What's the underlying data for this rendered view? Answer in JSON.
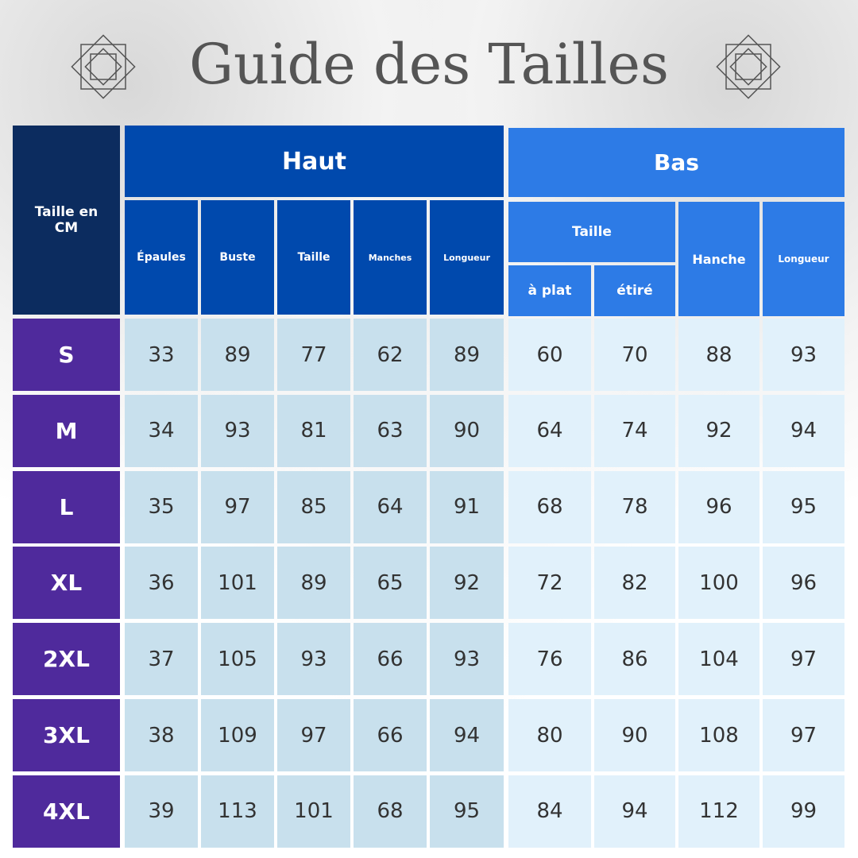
{
  "title": "Guide des Tailles",
  "corner_header": "Taille en CM",
  "haut": {
    "label": "Haut",
    "columns": [
      "Épaules",
      "Buste",
      "Taille",
      "Manches",
      "Longueur"
    ]
  },
  "bas": {
    "label": "Bas",
    "taille": {
      "label": "Taille",
      "columns": [
        "à plat",
        "étiré"
      ]
    },
    "columns": [
      "Hanche",
      "Longueur"
    ]
  },
  "rows": [
    {
      "size": "S",
      "values": [
        33,
        89,
        77,
        62,
        89,
        60,
        70,
        88,
        93
      ]
    },
    {
      "size": "M",
      "values": [
        34,
        93,
        81,
        63,
        90,
        64,
        74,
        92,
        94
      ]
    },
    {
      "size": "L",
      "values": [
        35,
        97,
        85,
        64,
        91,
        68,
        78,
        96,
        95
      ]
    },
    {
      "size": "XL",
      "values": [
        36,
        101,
        89,
        65,
        92,
        72,
        82,
        100,
        96
      ]
    },
    {
      "size": "2XL",
      "values": [
        37,
        105,
        93,
        66,
        93,
        76,
        86,
        104,
        97
      ]
    },
    {
      "size": "3XL",
      "values": [
        38,
        109,
        97,
        66,
        94,
        80,
        90,
        108,
        97
      ]
    },
    {
      "size": "4XL",
      "values": [
        39,
        113,
        101,
        68,
        95,
        84,
        94,
        112,
        99
      ]
    }
  ]
}
